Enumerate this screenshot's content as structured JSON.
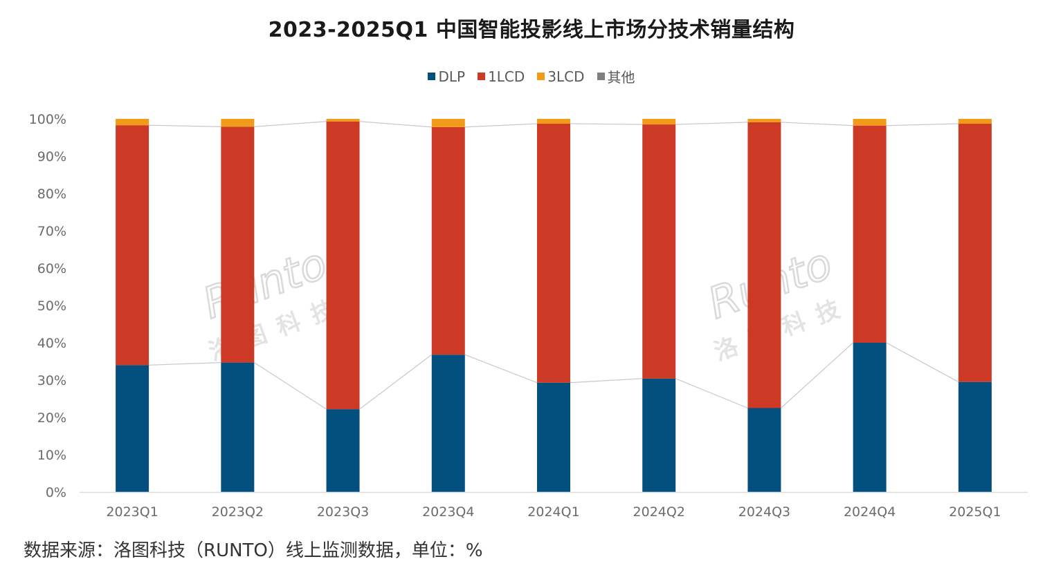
{
  "page": {
    "title": "2023-2025Q1 中国智能投影线上市场分技术销量结构",
    "source_note": "数据来源：洛图科技（RUNTO）线上监测数据，单位：%",
    "watermark": {
      "latin": "Runto",
      "cjk": "洛图科技"
    }
  },
  "chart_data": {
    "type": "bar",
    "stacked": true,
    "categories": [
      "2023Q1",
      "2023Q2",
      "2023Q3",
      "2023Q4",
      "2024Q1",
      "2024Q2",
      "2024Q3",
      "2024Q4",
      "2025Q1"
    ],
    "series": [
      {
        "name": "DLP",
        "color": "#03507f",
        "values": [
          34.0,
          34.7,
          22.2,
          36.8,
          29.3,
          30.4,
          22.5,
          40.0,
          29.5
        ]
      },
      {
        "name": "1LCD",
        "color": "#cc3a26",
        "values": [
          64.3,
          63.2,
          77.1,
          61.0,
          69.4,
          68.1,
          76.6,
          58.2,
          69.2
        ]
      },
      {
        "name": "3LCD",
        "color": "#f29a1a",
        "values": [
          1.7,
          2.1,
          0.7,
          2.2,
          1.3,
          1.5,
          0.9,
          1.8,
          1.3
        ]
      },
      {
        "name": "其他",
        "color": "#7f7f7f",
        "values": [
          0,
          0,
          0,
          0,
          0,
          0,
          0,
          0,
          0
        ]
      }
    ],
    "y_ticks": [
      "0%",
      "10%",
      "20%",
      "30%",
      "40%",
      "50%",
      "60%",
      "70%",
      "80%",
      "90%",
      "100%"
    ],
    "ylim": [
      0,
      100
    ],
    "grid": false,
    "series_lines": true,
    "legend_position": "top"
  }
}
